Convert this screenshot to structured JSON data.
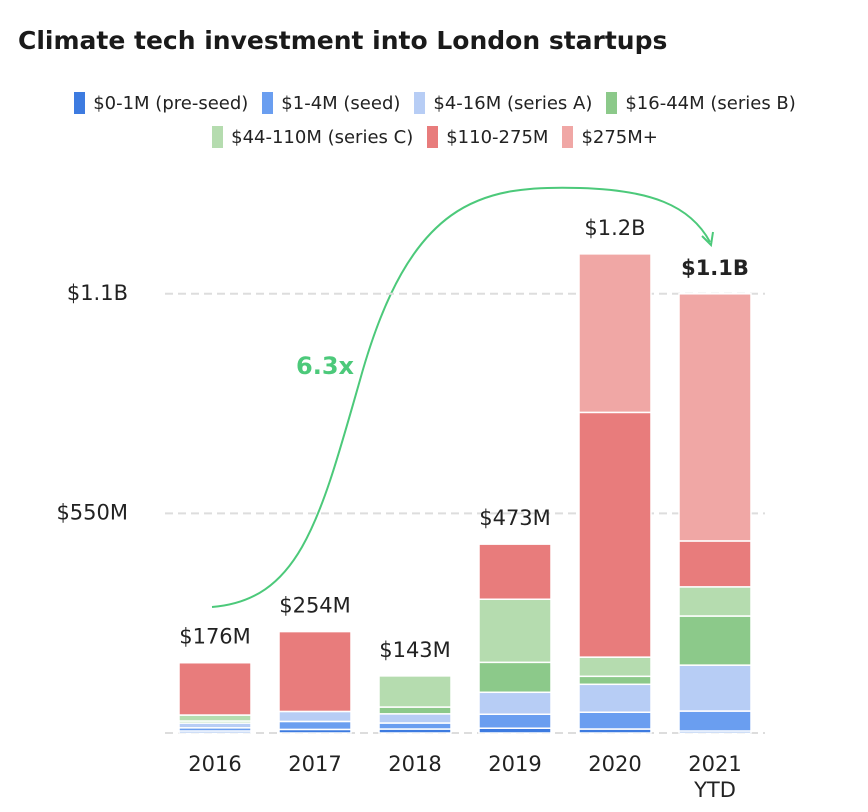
{
  "chart_data": {
    "type": "stacked_bar",
    "title": "Climate tech investment into London startups",
    "categories": [
      "2016",
      "2017",
      "2018",
      "2019",
      "2020",
      "2021 YTD"
    ],
    "series": [
      {
        "name": "$0-1M (pre-seed)",
        "color": "#3d7be0",
        "values": [
          5,
          9,
          10,
          12,
          10,
          5
        ]
      },
      {
        "name": "$1-4M (seed)",
        "color": "#6a9ef0",
        "values": [
          8,
          20,
          15,
          35,
          42,
          50
        ]
      },
      {
        "name": "$4-16M (series A)",
        "color": "#b7cdf5",
        "values": [
          12,
          25,
          23,
          55,
          70,
          115
        ]
      },
      {
        "name": "$16-44M (series B)",
        "color": "#8cc98a",
        "values": [
          5,
          0,
          17,
          75,
          20,
          123
        ]
      },
      {
        "name": "$44-110M (series C)",
        "color": "#b5dcaf",
        "values": [
          15,
          0,
          78,
          158,
          48,
          73
        ]
      },
      {
        "name": "$110-275M",
        "color": "#e87c7c",
        "values": [
          131,
          200,
          0,
          138,
          613,
          115
        ]
      },
      {
        "name": "$275M+",
        "color": "#f0a7a5",
        "values": [
          0,
          0,
          0,
          0,
          397,
          619
        ]
      }
    ],
    "totals": {
      "values": [
        176,
        254,
        143,
        473,
        1200,
        1100
      ],
      "value_labels": [
        "$176M",
        "$254M",
        "$143M",
        "$473M",
        "$1.2B",
        "$1.1B"
      ]
    },
    "annotation": "6.3x",
    "ylim": [
      0,
      1385
    ],
    "yticks": [
      {
        "value": 550,
        "label": "$550M"
      },
      {
        "value": 1100,
        "label": "$1.1B"
      }
    ],
    "grid": true
  }
}
